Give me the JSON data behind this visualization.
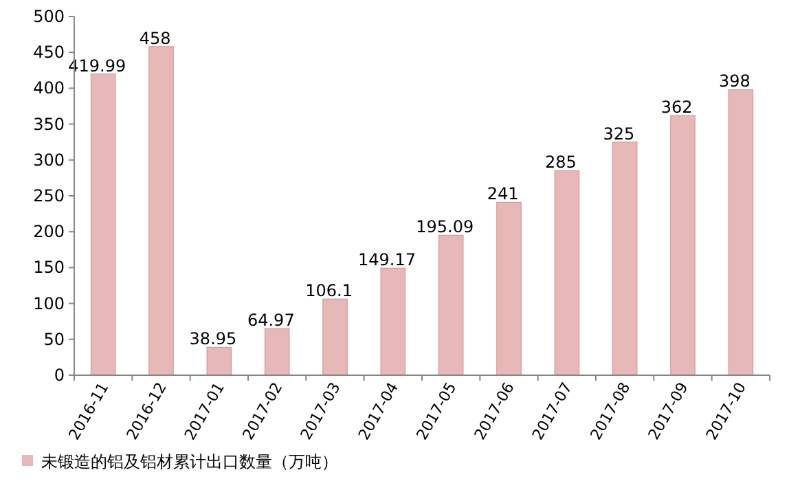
{
  "chart_data": {
    "type": "bar",
    "categories": [
      "2016-11",
      "2016-12",
      "2017-01",
      "2017-02",
      "2017-03",
      "2017-04",
      "2017-05",
      "2017-06",
      "2017-07",
      "2017-08",
      "2017-09",
      "2017-10"
    ],
    "series": [
      {
        "name": "未锻造的铝及铝材累计出口数量（万吨）",
        "color": "#e6b9b8",
        "values": [
          419.99,
          458,
          38.95,
          64.97,
          106.1,
          149.17,
          195.09,
          241,
          285,
          325,
          362,
          398
        ]
      }
    ],
    "ylim": [
      0,
      500
    ],
    "yticks": [
      0,
      50,
      100,
      150,
      200,
      250,
      300,
      350,
      400,
      450,
      500
    ],
    "data_labels": true,
    "legend": "bottom",
    "grid": false
  }
}
